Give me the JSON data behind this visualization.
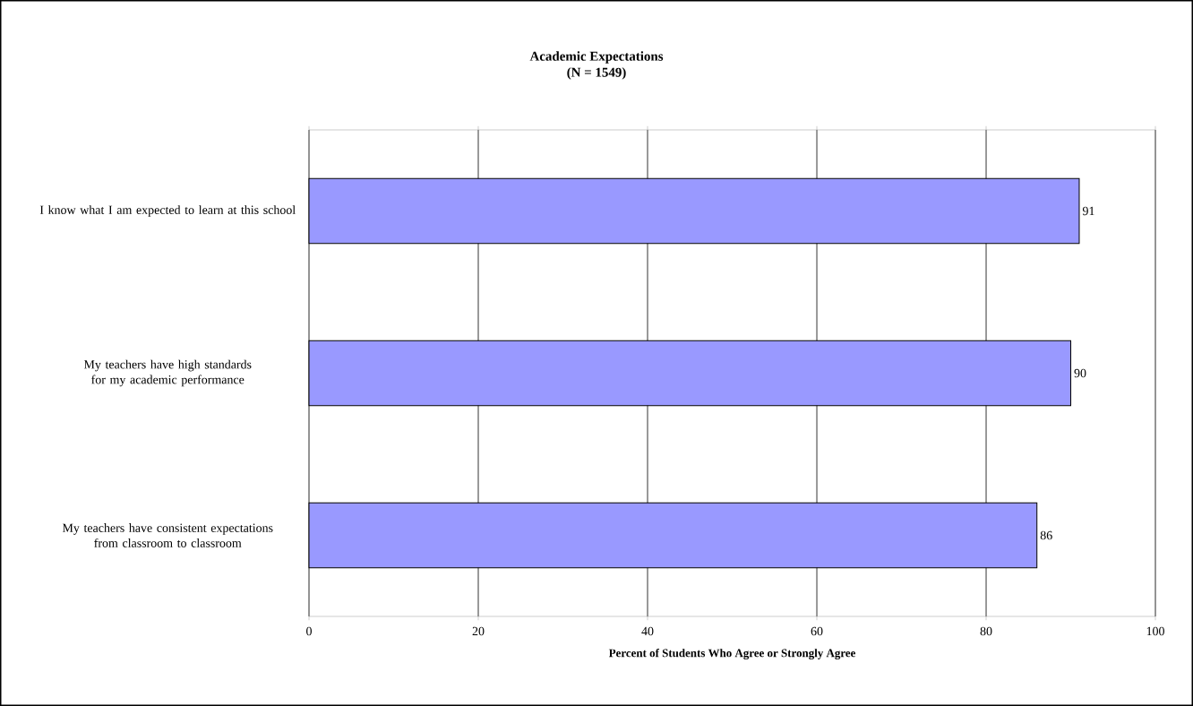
{
  "chart_data": {
    "type": "bar",
    "orientation": "horizontal",
    "title": "Academic Expectations",
    "subtitle": "(N = 1549)",
    "categories": [
      "I know what I am expected to learn at this school",
      "My teachers have high standards for my academic performance",
      "My teachers have consistent expectations from classroom to classroom"
    ],
    "values": [
      91,
      90,
      86
    ],
    "color": "#9999ff",
    "xlabel": "Percent of Students Who Agree or Strongly Agree",
    "xlim": [
      0,
      100
    ],
    "xticks": [
      0,
      20,
      40,
      60,
      80,
      100
    ],
    "grid": "x",
    "data_labels": true
  }
}
